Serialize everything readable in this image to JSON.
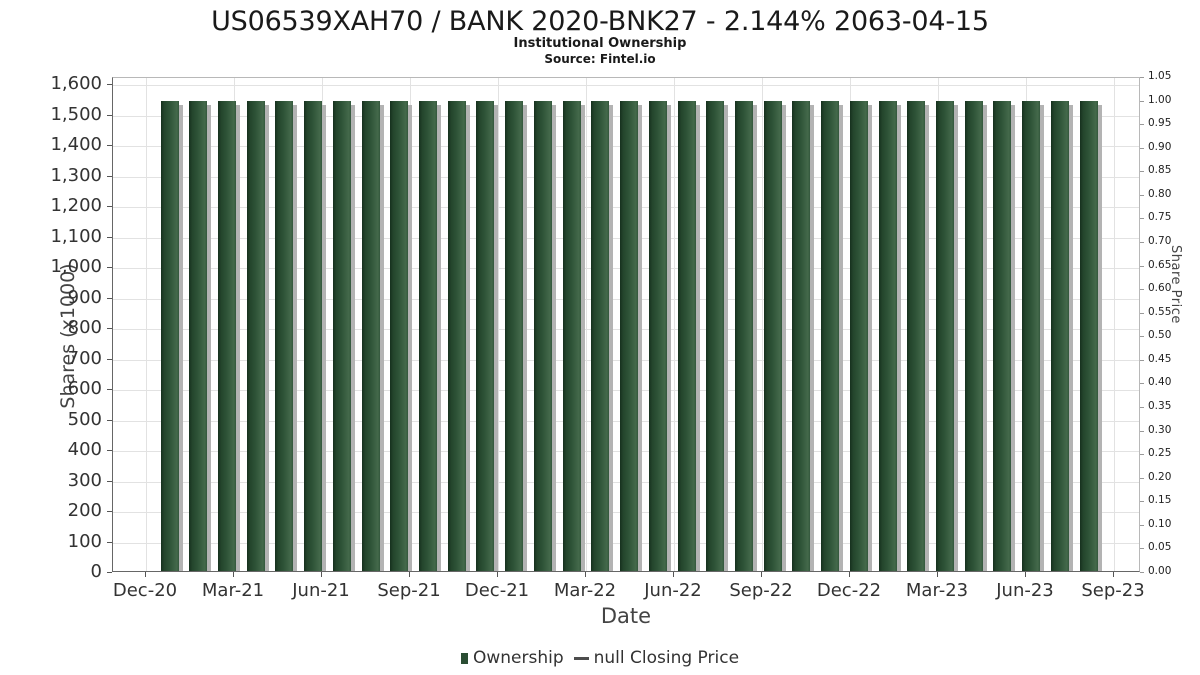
{
  "chart_data": {
    "type": "bar",
    "title": "US06539XAH70 / BANK 2020-BNK27 - 2.144% 2063-04-15",
    "subtitle": "Institutional Ownership",
    "source": "Source: Fintel.io",
    "xlabel": "Date",
    "ylabel_left": "Shares (x1000)",
    "ylabel_right": "Share Price",
    "grid": true,
    "legend_position": "bottom",
    "x_tick_labels": [
      "Dec-20",
      "Mar-21",
      "Jun-21",
      "Sep-21",
      "Dec-21",
      "Mar-22",
      "Jun-22",
      "Sep-22",
      "Dec-22",
      "Mar-23",
      "Jun-23",
      "Sep-23"
    ],
    "y_axis_left": {
      "min": 0,
      "max": 1600,
      "step": 100
    },
    "y_axis_right": {
      "min": 0.0,
      "max": 1.05,
      "step": 0.05
    },
    "categories": [
      "Dec-20",
      "Jan-21",
      "Feb-21",
      "Mar-21",
      "Apr-21",
      "May-21",
      "Jun-21",
      "Jul-21",
      "Aug-21",
      "Sep-21",
      "Oct-21",
      "Nov-21",
      "Dec-21",
      "Jan-22",
      "Feb-22",
      "Mar-22",
      "Apr-22",
      "May-22",
      "Jun-22",
      "Jul-22",
      "Aug-22",
      "Sep-22",
      "Oct-22",
      "Nov-22",
      "Dec-22",
      "Jan-23",
      "Feb-23",
      "Mar-23",
      "Apr-23",
      "May-23",
      "Jun-23",
      "Jul-23",
      "Aug-23"
    ],
    "series": [
      {
        "name": "Ownership",
        "type": "bar",
        "color": "#2a4d33",
        "values": [
          1540,
          1540,
          1540,
          1540,
          1540,
          1540,
          1540,
          1540,
          1540,
          1540,
          1540,
          1540,
          1540,
          1540,
          1540,
          1540,
          1540,
          1540,
          1540,
          1540,
          1540,
          1540,
          1540,
          1540,
          1540,
          1540,
          1540,
          1540,
          1540,
          1540,
          1540,
          1540,
          1540
        ]
      },
      {
        "name": "null Closing Price",
        "type": "line",
        "color": "#4d4d4d",
        "values": []
      }
    ],
    "legend": [
      {
        "label": "Ownership",
        "marker": "square",
        "color": "#2a4d33"
      },
      {
        "label": "null Closing Price",
        "marker": "line",
        "color": "#4d4d4d"
      }
    ]
  },
  "colors": {
    "bar_dark": "#16301e",
    "bar_mid": "#2d5236",
    "bar_light": "#44694b",
    "bar_shadow": "#b3b3b3",
    "gridline": "#e2e2e2",
    "axis_line": "#666666",
    "tick_text": "#333333"
  }
}
